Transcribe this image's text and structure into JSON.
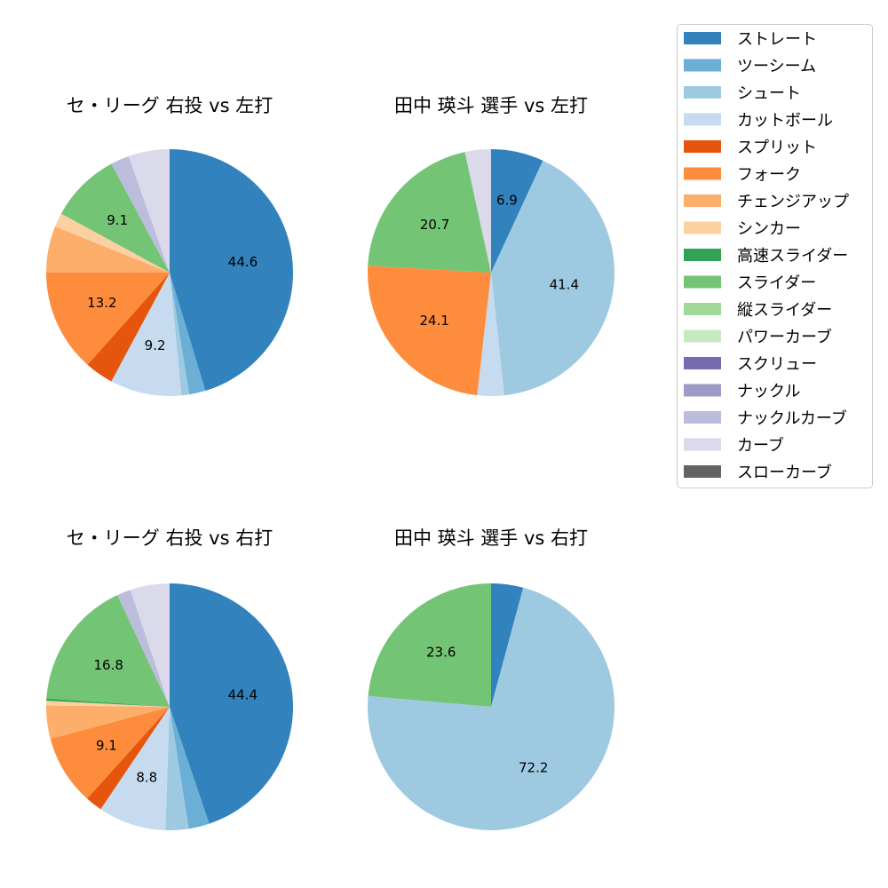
{
  "legend": {
    "items": [
      {
        "label": "ストレート",
        "color": "#3182bd"
      },
      {
        "label": "ツーシーム",
        "color": "#6baed6"
      },
      {
        "label": "シュート",
        "color": "#9ecae1"
      },
      {
        "label": "カットボール",
        "color": "#c6dbef"
      },
      {
        "label": "スプリット",
        "color": "#e6550d"
      },
      {
        "label": "フォーク",
        "color": "#fd8d3c"
      },
      {
        "label": "チェンジアップ",
        "color": "#fdae6b"
      },
      {
        "label": "シンカー",
        "color": "#fdd0a2"
      },
      {
        "label": "高速スライダー",
        "color": "#31a354"
      },
      {
        "label": "スライダー",
        "color": "#74c476"
      },
      {
        "label": "縦スライダー",
        "color": "#a1d99b"
      },
      {
        "label": "パワーカーブ",
        "color": "#c7e9c0"
      },
      {
        "label": "スクリュー",
        "color": "#756bb1"
      },
      {
        "label": "ナックル",
        "color": "#9e9ac8"
      },
      {
        "label": "ナックルカーブ",
        "color": "#bcbddc"
      },
      {
        "label": "カーブ",
        "color": "#dadaeb"
      },
      {
        "label": "スローカーブ",
        "color": "#636363"
      }
    ]
  },
  "chart_data": [
    {
      "type": "pie",
      "title": "セ・リーグ 右投 vs 左打",
      "categories": [
        "ストレート",
        "ツーシーム",
        "シュート",
        "カットボール",
        "スプリット",
        "フォーク",
        "チェンジアップ",
        "シンカー",
        "高速スライダー",
        "スライダー",
        "縦スライダー",
        "パワーカーブ",
        "スクリュー",
        "ナックル",
        "ナックルカーブ",
        "カーブ",
        "スローカーブ"
      ],
      "values": [
        44.6,
        2.1,
        1.0,
        9.2,
        3.7,
        13.2,
        6.0,
        1.8,
        0,
        9.1,
        0,
        0,
        0,
        0,
        2.4,
        5.3,
        0
      ],
      "labels": [
        "44.6",
        "",
        "",
        "9.2",
        "",
        "13.2",
        "",
        "",
        "",
        "9.1",
        "",
        "",
        "",
        "",
        "",
        "",
        ""
      ],
      "start_angle": 90,
      "direction": "clockwise"
    },
    {
      "type": "pie",
      "title": "田中 瑛斗 選手 vs 左打",
      "categories": [
        "ストレート",
        "ツーシーム",
        "シュート",
        "カットボール",
        "スプリット",
        "フォーク",
        "チェンジアップ",
        "シンカー",
        "高速スライダー",
        "スライダー",
        "縦スライダー",
        "パワーカーブ",
        "スクリュー",
        "ナックル",
        "ナックルカーブ",
        "カーブ",
        "スローカーブ"
      ],
      "values": [
        6.9,
        0,
        41.4,
        3.5,
        0,
        24.1,
        0,
        0,
        0,
        20.7,
        0,
        0,
        0,
        0,
        0,
        3.4,
        0
      ],
      "labels": [
        "6.9",
        "",
        "41.4",
        "",
        "",
        "24.1",
        "",
        "",
        "",
        "20.7",
        "",
        "",
        "",
        "",
        "",
        "",
        ""
      ],
      "start_angle": 90,
      "direction": "clockwise"
    },
    {
      "type": "pie",
      "title": "セ・リーグ 右投 vs 右打",
      "categories": [
        "ストレート",
        "ツーシーム",
        "シュート",
        "カットボール",
        "スプリット",
        "フォーク",
        "チェンジアップ",
        "シンカー",
        "高速スライダー",
        "スライダー",
        "縦スライダー",
        "パワーカーブ",
        "スクリュー",
        "ナックル",
        "ナックルカーブ",
        "カーブ",
        "スローカーブ"
      ],
      "values": [
        44.4,
        2.7,
        3.0,
        8.8,
        2.2,
        9.1,
        4.3,
        0.6,
        0.3,
        16.8,
        0,
        0,
        0,
        0,
        1.8,
        5.1,
        0
      ],
      "labels": [
        "44.4",
        "",
        "",
        "8.8",
        "",
        "9.1",
        "",
        "",
        "",
        "16.8",
        "",
        "",
        "",
        "",
        "",
        "",
        ""
      ],
      "start_angle": 90,
      "direction": "clockwise"
    },
    {
      "type": "pie",
      "title": "田中 瑛斗 選手 vs 右打",
      "categories": [
        "ストレート",
        "ツーシーム",
        "シュート",
        "カットボール",
        "スプリット",
        "フォーク",
        "チェンジアップ",
        "シンカー",
        "高速スライダー",
        "スライダー",
        "縦スライダー",
        "パワーカーブ",
        "スクリュー",
        "ナックル",
        "ナックルカーブ",
        "カーブ",
        "スローカーブ"
      ],
      "values": [
        4.2,
        0,
        72.2,
        0,
        0,
        0,
        0,
        0,
        0,
        23.6,
        0,
        0,
        0,
        0,
        0,
        0,
        0
      ],
      "labels": [
        "",
        "",
        "72.2",
        "",
        "",
        "",
        "",
        "",
        "",
        "23.6",
        "",
        "",
        "",
        "",
        "",
        "",
        ""
      ],
      "start_angle": 90,
      "direction": "clockwise"
    }
  ]
}
